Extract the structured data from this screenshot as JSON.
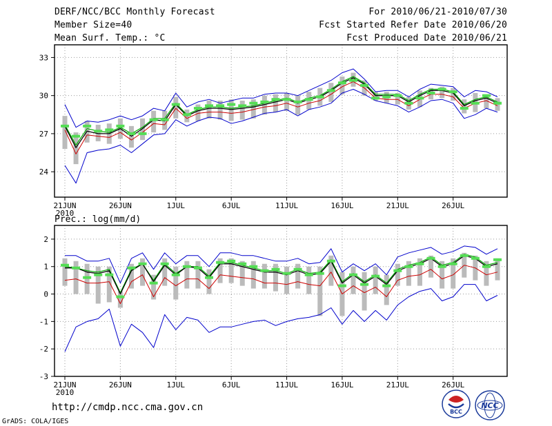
{
  "header": {
    "title": "DERF/NCC/BCC Monthly Forecast",
    "member_size": "Member Size=40",
    "variable": "Mean Surf. Temp.: °C",
    "period": "For 2010/06/21-2010/07/30",
    "fcst_started": "Fcst Started Refer Date 2010/06/20",
    "fcst_produced": "Fcst Produced Date 2010/06/21"
  },
  "footer": {
    "url": "http://cmdp.ncc.cma.gov.cn",
    "credit": "GrADS: COLA/IGES",
    "logo_bcc": "BCC",
    "logo_ncc": "NCC"
  },
  "colors": {
    "spread": "#bbbbbb",
    "ensemble_mean": "#000000",
    "envelope": "#0000cc",
    "lower_line": "#cc0000",
    "middle_line": "#00aa00",
    "member_mark": "#55dd55",
    "grid": "#999999"
  },
  "chart_data": [
    {
      "type": "line",
      "title": "Mean Surf. Temp.: °C",
      "x_start": "21JUN 2010",
      "x_ticks": [
        "21JUN",
        "26JUN",
        "1JUL",
        "6JUL",
        "11JUL",
        "16JUL",
        "21JUL",
        "26JUL"
      ],
      "x_year_label": "2010",
      "ylim": [
        22,
        34
      ],
      "y_ticks": [
        24,
        27,
        30,
        33
      ],
      "series": [
        {
          "name": "mean",
          "values": [
            27.6,
            25.9,
            27.2,
            27.0,
            27.0,
            27.4,
            26.8,
            27.4,
            28.1,
            28.0,
            29.3,
            28.4,
            28.8,
            29.0,
            29.0,
            28.9,
            29.0,
            29.1,
            29.3,
            29.5,
            29.7,
            29.4,
            29.7,
            29.9,
            30.4,
            31.0,
            31.4,
            30.9,
            30.0,
            30.0,
            30.0,
            29.5,
            30.0,
            30.4,
            30.4,
            30.2,
            29.2,
            29.6,
            29.8,
            29.4
          ]
        },
        {
          "name": "upper",
          "values": [
            29.3,
            27.5,
            28.0,
            27.9,
            28.1,
            28.4,
            28.1,
            28.4,
            29.0,
            28.8,
            30.2,
            29.1,
            29.5,
            29.7,
            29.4,
            29.6,
            29.8,
            29.8,
            30.1,
            30.2,
            30.2,
            30.0,
            30.4,
            30.8,
            31.2,
            31.8,
            32.1,
            31.3,
            30.3,
            30.4,
            30.4,
            29.9,
            30.5,
            30.9,
            30.8,
            30.7,
            29.9,
            30.4,
            30.3,
            29.9
          ]
        },
        {
          "name": "lower",
          "values": [
            24.5,
            23.1,
            25.5,
            25.7,
            25.8,
            26.1,
            25.5,
            26.2,
            26.9,
            27.0,
            28.1,
            27.6,
            28.0,
            28.3,
            28.2,
            27.8,
            28.0,
            28.3,
            28.6,
            28.7,
            28.9,
            28.4,
            28.9,
            29.1,
            29.4,
            30.2,
            30.5,
            30.1,
            29.6,
            29.4,
            29.2,
            28.7,
            29.1,
            29.6,
            29.7,
            29.4,
            28.2,
            28.5,
            29.0,
            28.7
          ]
        },
        {
          "name": "red",
          "values": [
            27.3,
            25.4,
            26.9,
            26.8,
            26.7,
            27.1,
            26.5,
            27.1,
            27.8,
            27.7,
            29.0,
            28.2,
            28.6,
            28.7,
            28.7,
            28.6,
            28.7,
            28.9,
            29.1,
            29.2,
            29.4,
            29.1,
            29.4,
            29.6,
            30.1,
            30.7,
            31.1,
            30.6,
            29.8,
            29.7,
            29.7,
            29.2,
            29.7,
            30.1,
            30.1,
            29.9,
            29.0,
            29.4,
            29.6,
            29.2
          ]
        },
        {
          "name": "green",
          "values": [
            27.7,
            26.1,
            27.4,
            27.2,
            27.1,
            27.5,
            27.0,
            27.5,
            28.2,
            28.2,
            29.4,
            28.5,
            28.9,
            29.1,
            29.1,
            29.0,
            29.1,
            29.2,
            29.4,
            29.6,
            29.8,
            29.5,
            29.8,
            30.0,
            30.5,
            31.1,
            31.5,
            31.0,
            30.1,
            30.1,
            30.1,
            29.6,
            30.1,
            30.5,
            30.5,
            30.3,
            29.3,
            29.7,
            29.9,
            29.5
          ]
        },
        {
          "name": "member_mark",
          "values": [
            27.6,
            26.8,
            27.6,
            27.2,
            27.3,
            27.6,
            27.0,
            27.0,
            28.1,
            28.1,
            29.3,
            28.5,
            29.0,
            29.2,
            29.2,
            29.3,
            29.2,
            29.4,
            29.5,
            29.7,
            29.7,
            29.5,
            29.7,
            29.9,
            30.4,
            31.0,
            31.2,
            30.8,
            29.8,
            29.9,
            30.0,
            29.4,
            29.8,
            30.2,
            30.5,
            30.3,
            29.0,
            29.4,
            30.0,
            29.4
          ]
        },
        {
          "name": "spread_low",
          "values": [
            25.8,
            24.6,
            26.3,
            26.4,
            26.2,
            26.6,
            25.9,
            26.5,
            27.1,
            27.3,
            28.2,
            27.9,
            28.0,
            28.2,
            28.1,
            28.0,
            28.1,
            28.2,
            28.5,
            28.7,
            28.8,
            28.5,
            28.9,
            29.2,
            29.5,
            30.1,
            30.7,
            30.0,
            29.6,
            29.4,
            29.3,
            28.9,
            29.1,
            29.7,
            29.8,
            29.6,
            28.6,
            28.7,
            29.0,
            28.8
          ]
        },
        {
          "name": "spread_high",
          "values": [
            28.4,
            27.1,
            28.0,
            27.7,
            27.8,
            28.2,
            27.6,
            28.2,
            28.8,
            28.8,
            29.9,
            28.9,
            29.3,
            29.6,
            29.6,
            29.7,
            29.6,
            29.7,
            30.0,
            30.1,
            30.2,
            30.0,
            30.3,
            30.6,
            31.0,
            31.5,
            31.8,
            31.2,
            30.3,
            30.3,
            30.2,
            29.9,
            30.4,
            30.6,
            30.7,
            30.6,
            29.7,
            30.2,
            30.1,
            29.8
          ]
        }
      ]
    },
    {
      "type": "line",
      "title": "Prec.: log(mm/d)",
      "x_ticks": [
        "21JUN",
        "26JUN",
        "1JUL",
        "6JUL",
        "11JUL",
        "16JUL",
        "21JUL",
        "26JUL"
      ],
      "x_year_label": "2010",
      "ylim": [
        -3,
        2.5
      ],
      "y_ticks": [
        -3,
        -2,
        -1,
        0,
        1,
        2
      ],
      "series": [
        {
          "name": "mean",
          "values": [
            0.95,
            0.95,
            0.8,
            0.75,
            0.85,
            0.0,
            0.85,
            1.1,
            0.45,
            1.05,
            0.7,
            1.0,
            0.95,
            0.6,
            1.1,
            1.1,
            1.0,
            0.9,
            0.8,
            0.8,
            0.7,
            0.85,
            0.7,
            0.75,
            1.2,
            0.4,
            0.7,
            0.4,
            0.65,
            0.35,
            0.85,
            1.0,
            1.1,
            1.3,
            1.0,
            1.1,
            1.4,
            1.3,
            1.0,
            1.1
          ]
        },
        {
          "name": "upper",
          "values": [
            1.4,
            1.4,
            1.2,
            1.2,
            1.3,
            0.4,
            1.3,
            1.5,
            0.9,
            1.5,
            1.1,
            1.4,
            1.4,
            1.0,
            1.5,
            1.5,
            1.4,
            1.4,
            1.3,
            1.2,
            1.2,
            1.3,
            1.1,
            1.15,
            1.65,
            0.8,
            1.1,
            0.85,
            1.1,
            0.7,
            1.35,
            1.5,
            1.6,
            1.7,
            1.45,
            1.55,
            1.75,
            1.7,
            1.45,
            1.65
          ]
        },
        {
          "name": "lower",
          "values": [
            -2.1,
            -1.2,
            -1.0,
            -0.9,
            -0.55,
            -1.9,
            -1.1,
            -1.4,
            -1.95,
            -0.75,
            -1.3,
            -0.85,
            -0.95,
            -1.4,
            -1.2,
            -1.2,
            -1.1,
            -1.0,
            -0.95,
            -1.15,
            -1.0,
            -0.9,
            -0.85,
            -0.75,
            -0.5,
            -1.1,
            -0.6,
            -1.0,
            -0.6,
            -0.95,
            -0.4,
            -0.1,
            0.1,
            0.2,
            -0.25,
            -0.1,
            0.35,
            0.35,
            -0.25,
            -0.05
          ]
        },
        {
          "name": "red",
          "values": [
            0.5,
            0.55,
            0.4,
            0.4,
            0.45,
            -0.35,
            0.45,
            0.7,
            -0.1,
            0.6,
            0.3,
            0.55,
            0.55,
            0.2,
            0.7,
            0.65,
            0.6,
            0.55,
            0.4,
            0.4,
            0.35,
            0.45,
            0.35,
            0.3,
            0.8,
            0.0,
            0.3,
            0.05,
            0.25,
            -0.1,
            0.5,
            0.65,
            0.7,
            0.9,
            0.55,
            0.7,
            1.05,
            0.95,
            0.7,
            0.8
          ]
        },
        {
          "name": "green",
          "values": [
            1.0,
            0.95,
            0.85,
            0.8,
            0.9,
            0.05,
            0.9,
            1.1,
            0.5,
            1.1,
            0.75,
            1.0,
            1.0,
            0.65,
            1.15,
            1.15,
            1.05,
            0.95,
            0.85,
            0.85,
            0.75,
            0.9,
            0.75,
            0.8,
            1.25,
            0.45,
            0.75,
            0.45,
            0.7,
            0.4,
            0.9,
            1.05,
            1.15,
            1.35,
            1.05,
            1.15,
            1.45,
            1.35,
            1.05,
            1.15
          ]
        },
        {
          "name": "member_mark",
          "values": [
            1.05,
            0.95,
            0.6,
            0.7,
            0.7,
            -0.1,
            0.95,
            1.1,
            0.4,
            1.1,
            0.7,
            1.0,
            0.95,
            0.6,
            1.15,
            1.2,
            1.1,
            1.0,
            0.85,
            0.9,
            0.75,
            0.9,
            0.7,
            0.75,
            1.2,
            0.3,
            0.7,
            0.35,
            0.65,
            0.3,
            0.85,
            1.0,
            1.1,
            1.3,
            1.0,
            1.1,
            1.4,
            1.3,
            1.0,
            1.25
          ]
        },
        {
          "name": "spread_low",
          "values": [
            0.3,
            0.0,
            0.0,
            -0.35,
            -0.3,
            -0.5,
            0.2,
            0.3,
            -0.2,
            0.3,
            -0.2,
            0.2,
            0.2,
            0.0,
            0.4,
            0.4,
            0.3,
            0.2,
            0.2,
            0.1,
            0.0,
            0.2,
            0.0,
            -0.8,
            0.3,
            -0.8,
            0.0,
            -0.6,
            0.0,
            -0.4,
            0.3,
            0.3,
            0.3,
            0.6,
            0.2,
            0.2,
            0.6,
            0.5,
            0.3,
            0.5
          ]
        },
        {
          "name": "spread_high",
          "values": [
            1.3,
            1.2,
            1.1,
            1.0,
            1.0,
            0.1,
            1.1,
            1.3,
            0.7,
            1.3,
            1.0,
            1.2,
            1.2,
            0.9,
            1.3,
            1.3,
            1.2,
            1.2,
            1.1,
            1.1,
            1.0,
            1.1,
            1.0,
            1.0,
            1.4,
            0.8,
            1.0,
            0.8,
            1.0,
            0.7,
            1.1,
            1.2,
            1.3,
            1.4,
            1.2,
            1.3,
            1.5,
            1.4,
            1.2,
            1.3
          ]
        }
      ]
    }
  ]
}
